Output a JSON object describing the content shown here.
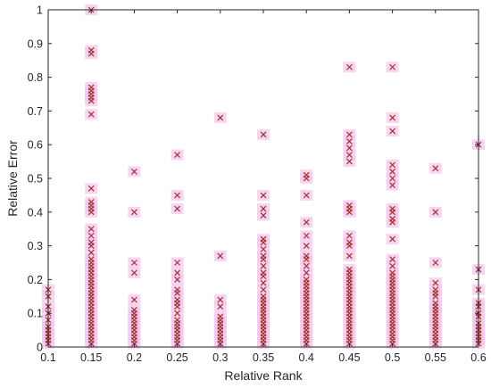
{
  "chart_data": {
    "type": "scatter",
    "title": "",
    "xlabel": "Relative Rank",
    "ylabel": "Relative Error",
    "xlim": [
      0.1,
      0.6
    ],
    "ylim": [
      0,
      1
    ],
    "xticks": [
      0.1,
      0.15,
      0.2,
      0.25,
      0.3,
      0.35,
      0.4,
      0.45,
      0.5,
      0.55,
      0.6
    ],
    "xtick_labels": [
      "0.1",
      "0.15",
      "0.2",
      "0.25",
      "0.3",
      "0.35",
      "0.4",
      "0.45",
      "0.5",
      "0.55",
      "0.6"
    ],
    "yticks": [
      0,
      0.1,
      0.2,
      0.3,
      0.4,
      0.5,
      0.6,
      0.7,
      0.8,
      0.9,
      1
    ],
    "ytick_labels": [
      "0",
      "0.1",
      "0.2",
      "0.3",
      "0.4",
      "0.5",
      "0.6",
      "0.7",
      "0.8",
      "0.9",
      "1"
    ],
    "grid": false,
    "marker": "x",
    "marker_color": "#a0322d",
    "halo_color": "#f6c8ee",
    "series": [
      {
        "points": [
          [
            0.1,
            0.01
          ],
          [
            0.1,
            0.02
          ],
          [
            0.1,
            0.03
          ],
          [
            0.1,
            0.04
          ],
          [
            0.1,
            0.05
          ],
          [
            0.1,
            0.06
          ],
          [
            0.1,
            0.08
          ],
          [
            0.1,
            0.1
          ],
          [
            0.1,
            0.12
          ],
          [
            0.1,
            0.15
          ],
          [
            0.1,
            0.17
          ],
          [
            0.15,
            0.01
          ],
          [
            0.15,
            0.02
          ],
          [
            0.15,
            0.03
          ],
          [
            0.15,
            0.04
          ],
          [
            0.15,
            0.05
          ],
          [
            0.15,
            0.06
          ],
          [
            0.15,
            0.07
          ],
          [
            0.15,
            0.08
          ],
          [
            0.15,
            0.09
          ],
          [
            0.15,
            0.1
          ],
          [
            0.15,
            0.11
          ],
          [
            0.15,
            0.12
          ],
          [
            0.15,
            0.13
          ],
          [
            0.15,
            0.14
          ],
          [
            0.15,
            0.15
          ],
          [
            0.15,
            0.16
          ],
          [
            0.15,
            0.17
          ],
          [
            0.15,
            0.18
          ],
          [
            0.15,
            0.19
          ],
          [
            0.15,
            0.2
          ],
          [
            0.15,
            0.21
          ],
          [
            0.15,
            0.22
          ],
          [
            0.15,
            0.23
          ],
          [
            0.15,
            0.24
          ],
          [
            0.15,
            0.25
          ],
          [
            0.15,
            0.26
          ],
          [
            0.15,
            0.28
          ],
          [
            0.15,
            0.3
          ],
          [
            0.15,
            0.31
          ],
          [
            0.15,
            0.33
          ],
          [
            0.15,
            0.35
          ],
          [
            0.15,
            0.4
          ],
          [
            0.15,
            0.41
          ],
          [
            0.15,
            0.42
          ],
          [
            0.15,
            0.43
          ],
          [
            0.15,
            0.47
          ],
          [
            0.15,
            0.69
          ],
          [
            0.15,
            0.73
          ],
          [
            0.15,
            0.74
          ],
          [
            0.15,
            0.75
          ],
          [
            0.15,
            0.76
          ],
          [
            0.15,
            0.77
          ],
          [
            0.15,
            0.87
          ],
          [
            0.15,
            0.88
          ],
          [
            0.15,
            1.0
          ],
          [
            0.2,
            0.01
          ],
          [
            0.2,
            0.02
          ],
          [
            0.2,
            0.03
          ],
          [
            0.2,
            0.04
          ],
          [
            0.2,
            0.05
          ],
          [
            0.2,
            0.06
          ],
          [
            0.2,
            0.07
          ],
          [
            0.2,
            0.08
          ],
          [
            0.2,
            0.09
          ],
          [
            0.2,
            0.1
          ],
          [
            0.2,
            0.11
          ],
          [
            0.2,
            0.14
          ],
          [
            0.2,
            0.22
          ],
          [
            0.2,
            0.25
          ],
          [
            0.2,
            0.4
          ],
          [
            0.2,
            0.52
          ],
          [
            0.25,
            0.01
          ],
          [
            0.25,
            0.02
          ],
          [
            0.25,
            0.03
          ],
          [
            0.25,
            0.04
          ],
          [
            0.25,
            0.05
          ],
          [
            0.25,
            0.06
          ],
          [
            0.25,
            0.07
          ],
          [
            0.25,
            0.08
          ],
          [
            0.25,
            0.1
          ],
          [
            0.25,
            0.12
          ],
          [
            0.25,
            0.13
          ],
          [
            0.25,
            0.14
          ],
          [
            0.25,
            0.16
          ],
          [
            0.25,
            0.17
          ],
          [
            0.25,
            0.2
          ],
          [
            0.25,
            0.22
          ],
          [
            0.25,
            0.25
          ],
          [
            0.25,
            0.41
          ],
          [
            0.25,
            0.45
          ],
          [
            0.25,
            0.57
          ],
          [
            0.3,
            0.01
          ],
          [
            0.3,
            0.02
          ],
          [
            0.3,
            0.03
          ],
          [
            0.3,
            0.04
          ],
          [
            0.3,
            0.05
          ],
          [
            0.3,
            0.06
          ],
          [
            0.3,
            0.07
          ],
          [
            0.3,
            0.08
          ],
          [
            0.3,
            0.09
          ],
          [
            0.3,
            0.12
          ],
          [
            0.3,
            0.14
          ],
          [
            0.3,
            0.27
          ],
          [
            0.3,
            0.68
          ],
          [
            0.35,
            0.01
          ],
          [
            0.35,
            0.02
          ],
          [
            0.35,
            0.03
          ],
          [
            0.35,
            0.04
          ],
          [
            0.35,
            0.05
          ],
          [
            0.35,
            0.06
          ],
          [
            0.35,
            0.07
          ],
          [
            0.35,
            0.08
          ],
          [
            0.35,
            0.09
          ],
          [
            0.35,
            0.1
          ],
          [
            0.35,
            0.11
          ],
          [
            0.35,
            0.12
          ],
          [
            0.35,
            0.13
          ],
          [
            0.35,
            0.14
          ],
          [
            0.35,
            0.15
          ],
          [
            0.35,
            0.17
          ],
          [
            0.35,
            0.19
          ],
          [
            0.35,
            0.21
          ],
          [
            0.35,
            0.22
          ],
          [
            0.35,
            0.24
          ],
          [
            0.35,
            0.26
          ],
          [
            0.35,
            0.27
          ],
          [
            0.35,
            0.29
          ],
          [
            0.35,
            0.31
          ],
          [
            0.35,
            0.32
          ],
          [
            0.35,
            0.39
          ],
          [
            0.35,
            0.41
          ],
          [
            0.35,
            0.45
          ],
          [
            0.35,
            0.63
          ],
          [
            0.4,
            0.01
          ],
          [
            0.4,
            0.02
          ],
          [
            0.4,
            0.03
          ],
          [
            0.4,
            0.04
          ],
          [
            0.4,
            0.05
          ],
          [
            0.4,
            0.06
          ],
          [
            0.4,
            0.07
          ],
          [
            0.4,
            0.08
          ],
          [
            0.4,
            0.09
          ],
          [
            0.4,
            0.1
          ],
          [
            0.4,
            0.11
          ],
          [
            0.4,
            0.12
          ],
          [
            0.4,
            0.13
          ],
          [
            0.4,
            0.14
          ],
          [
            0.4,
            0.15
          ],
          [
            0.4,
            0.16
          ],
          [
            0.4,
            0.17
          ],
          [
            0.4,
            0.18
          ],
          [
            0.4,
            0.19
          ],
          [
            0.4,
            0.2
          ],
          [
            0.4,
            0.22
          ],
          [
            0.4,
            0.24
          ],
          [
            0.4,
            0.26
          ],
          [
            0.4,
            0.27
          ],
          [
            0.4,
            0.3
          ],
          [
            0.4,
            0.33
          ],
          [
            0.4,
            0.37
          ],
          [
            0.4,
            0.45
          ],
          [
            0.4,
            0.5
          ],
          [
            0.4,
            0.51
          ],
          [
            0.45,
            0.01
          ],
          [
            0.45,
            0.02
          ],
          [
            0.45,
            0.03
          ],
          [
            0.45,
            0.04
          ],
          [
            0.45,
            0.05
          ],
          [
            0.45,
            0.06
          ],
          [
            0.45,
            0.07
          ],
          [
            0.45,
            0.08
          ],
          [
            0.45,
            0.09
          ],
          [
            0.45,
            0.1
          ],
          [
            0.45,
            0.11
          ],
          [
            0.45,
            0.12
          ],
          [
            0.45,
            0.13
          ],
          [
            0.45,
            0.14
          ],
          [
            0.45,
            0.15
          ],
          [
            0.45,
            0.16
          ],
          [
            0.45,
            0.17
          ],
          [
            0.45,
            0.18
          ],
          [
            0.45,
            0.19
          ],
          [
            0.45,
            0.2
          ],
          [
            0.45,
            0.21
          ],
          [
            0.45,
            0.22
          ],
          [
            0.45,
            0.23
          ],
          [
            0.45,
            0.27
          ],
          [
            0.45,
            0.3
          ],
          [
            0.45,
            0.31
          ],
          [
            0.45,
            0.33
          ],
          [
            0.45,
            0.4
          ],
          [
            0.45,
            0.41
          ],
          [
            0.45,
            0.42
          ],
          [
            0.45,
            0.55
          ],
          [
            0.45,
            0.57
          ],
          [
            0.45,
            0.59
          ],
          [
            0.45,
            0.61
          ],
          [
            0.45,
            0.63
          ],
          [
            0.45,
            0.83
          ],
          [
            0.5,
            0.01
          ],
          [
            0.5,
            0.02
          ],
          [
            0.5,
            0.03
          ],
          [
            0.5,
            0.04
          ],
          [
            0.5,
            0.05
          ],
          [
            0.5,
            0.06
          ],
          [
            0.5,
            0.07
          ],
          [
            0.5,
            0.08
          ],
          [
            0.5,
            0.09
          ],
          [
            0.5,
            0.1
          ],
          [
            0.5,
            0.11
          ],
          [
            0.5,
            0.12
          ],
          [
            0.5,
            0.13
          ],
          [
            0.5,
            0.14
          ],
          [
            0.5,
            0.15
          ],
          [
            0.5,
            0.16
          ],
          [
            0.5,
            0.17
          ],
          [
            0.5,
            0.18
          ],
          [
            0.5,
            0.19
          ],
          [
            0.5,
            0.2
          ],
          [
            0.5,
            0.21
          ],
          [
            0.5,
            0.22
          ],
          [
            0.5,
            0.24
          ],
          [
            0.5,
            0.26
          ],
          [
            0.5,
            0.32
          ],
          [
            0.5,
            0.37
          ],
          [
            0.5,
            0.38
          ],
          [
            0.5,
            0.4
          ],
          [
            0.5,
            0.41
          ],
          [
            0.5,
            0.48
          ],
          [
            0.5,
            0.5
          ],
          [
            0.5,
            0.52
          ],
          [
            0.5,
            0.54
          ],
          [
            0.5,
            0.64
          ],
          [
            0.5,
            0.68
          ],
          [
            0.5,
            0.83
          ],
          [
            0.55,
            0.01
          ],
          [
            0.55,
            0.02
          ],
          [
            0.55,
            0.03
          ],
          [
            0.55,
            0.04
          ],
          [
            0.55,
            0.05
          ],
          [
            0.55,
            0.06
          ],
          [
            0.55,
            0.07
          ],
          [
            0.55,
            0.08
          ],
          [
            0.55,
            0.09
          ],
          [
            0.55,
            0.1
          ],
          [
            0.55,
            0.11
          ],
          [
            0.55,
            0.12
          ],
          [
            0.55,
            0.13
          ],
          [
            0.55,
            0.15
          ],
          [
            0.55,
            0.16
          ],
          [
            0.55,
            0.17
          ],
          [
            0.55,
            0.19
          ],
          [
            0.55,
            0.25
          ],
          [
            0.55,
            0.4
          ],
          [
            0.55,
            0.53
          ],
          [
            0.6,
            0.01
          ],
          [
            0.6,
            0.02
          ],
          [
            0.6,
            0.03
          ],
          [
            0.6,
            0.04
          ],
          [
            0.6,
            0.05
          ],
          [
            0.6,
            0.06
          ],
          [
            0.6,
            0.07
          ],
          [
            0.6,
            0.09
          ],
          [
            0.6,
            0.1
          ],
          [
            0.6,
            0.12
          ],
          [
            0.6,
            0.13
          ],
          [
            0.6,
            0.17
          ],
          [
            0.6,
            0.23
          ],
          [
            0.6,
            0.6
          ]
        ]
      }
    ]
  }
}
